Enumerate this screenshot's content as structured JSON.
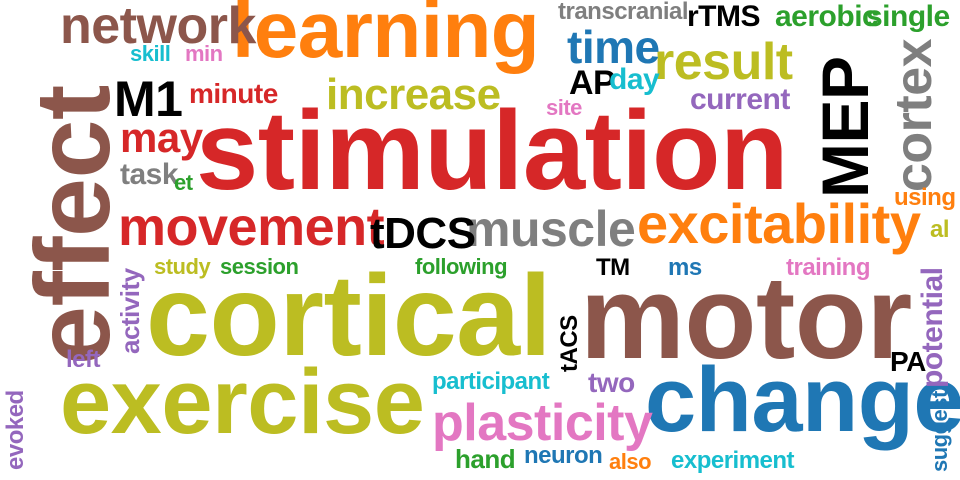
{
  "palette": {
    "red": "#d62728",
    "brown": "#8c564b",
    "orange": "#ff7f0e",
    "olive": "#bcbd22",
    "blue": "#1f77b4",
    "gray": "#7f7f7f",
    "purple": "#9467bd",
    "pink": "#e377c2",
    "green": "#2ca02c",
    "cyan": "#17becf"
  },
  "words": [
    {
      "id": "stimulation",
      "text": "stimulation",
      "color": "red"
    },
    {
      "id": "cortical",
      "text": "cortical",
      "color": "olive"
    },
    {
      "id": "motor",
      "text": "motor",
      "color": "brown"
    },
    {
      "id": "exercise",
      "text": "exercise",
      "color": "olive"
    },
    {
      "id": "effect",
      "text": "effect",
      "color": "brown"
    },
    {
      "id": "change",
      "text": "change",
      "color": "blue"
    },
    {
      "id": "learning",
      "text": "learning",
      "color": "orange"
    },
    {
      "id": "mep",
      "text": "MEP",
      "color": "gray"
    },
    {
      "id": "excitability",
      "text": "excitability",
      "color": "orange"
    },
    {
      "id": "movement",
      "text": "movement",
      "color": "red"
    },
    {
      "id": "plasticity",
      "text": "plasticity",
      "color": "pink"
    },
    {
      "id": "muscle",
      "text": "muscle",
      "color": "gray"
    },
    {
      "id": "network",
      "text": "network",
      "color": "brown"
    },
    {
      "id": "cortex",
      "text": "cortex",
      "color": "gray"
    },
    {
      "id": "result",
      "text": "result",
      "color": "olive"
    },
    {
      "id": "increase",
      "text": "increase",
      "color": "olive"
    },
    {
      "id": "m1",
      "text": "M1",
      "color": "gray"
    },
    {
      "id": "time",
      "text": "time",
      "color": "blue"
    },
    {
      "id": "tdcs",
      "text": "tDCS",
      "color": "purple"
    },
    {
      "id": "may",
      "text": "may",
      "color": "red"
    },
    {
      "id": "current",
      "text": "current",
      "color": "purple"
    },
    {
      "id": "rtms",
      "text": "rTMS",
      "color": "green"
    },
    {
      "id": "aerobic",
      "text": "aerobic",
      "color": "green"
    },
    {
      "id": "single",
      "text": "single",
      "color": "green"
    },
    {
      "id": "transcranial",
      "text": "transcranial",
      "color": "gray"
    },
    {
      "id": "minute",
      "text": "minute",
      "color": "red"
    },
    {
      "id": "ap",
      "text": "AP",
      "color": "orange"
    },
    {
      "id": "day",
      "text": "day",
      "color": "cyan"
    },
    {
      "id": "skill",
      "text": "skill",
      "color": "cyan"
    },
    {
      "id": "min",
      "text": "min",
      "color": "pink"
    },
    {
      "id": "site",
      "text": "site",
      "color": "pink"
    },
    {
      "id": "task",
      "text": "task",
      "color": "gray"
    },
    {
      "id": "et",
      "text": "et",
      "color": "green"
    },
    {
      "id": "using",
      "text": "using",
      "color": "orange"
    },
    {
      "id": "al",
      "text": "al",
      "color": "olive"
    },
    {
      "id": "study",
      "text": "study",
      "color": "olive"
    },
    {
      "id": "session",
      "text": "session",
      "color": "green"
    },
    {
      "id": "following",
      "text": "following",
      "color": "green"
    },
    {
      "id": "tm",
      "text": "TM",
      "color": "green"
    },
    {
      "id": "ms",
      "text": "ms",
      "color": "blue"
    },
    {
      "id": "training",
      "text": "training",
      "color": "pink"
    },
    {
      "id": "activity",
      "text": "activity",
      "color": "purple"
    },
    {
      "id": "potential",
      "text": "potential",
      "color": "purple"
    },
    {
      "id": "left",
      "text": "left",
      "color": "purple"
    },
    {
      "id": "participant",
      "text": "participant",
      "color": "cyan"
    },
    {
      "id": "tacs",
      "text": "tACS",
      "color": "pink"
    },
    {
      "id": "two",
      "text": "two",
      "color": "purple"
    },
    {
      "id": "pa",
      "text": "PA",
      "color": "green"
    },
    {
      "id": "evoked",
      "text": "evoked",
      "color": "purple"
    },
    {
      "id": "hand",
      "text": "hand",
      "color": "green"
    },
    {
      "id": "neuron",
      "text": "neuron",
      "color": "blue"
    },
    {
      "id": "also",
      "text": "also",
      "color": "orange"
    },
    {
      "id": "experiment",
      "text": "experiment",
      "color": "cyan"
    },
    {
      "id": "suggest",
      "text": "suggest",
      "color": "blue"
    }
  ]
}
